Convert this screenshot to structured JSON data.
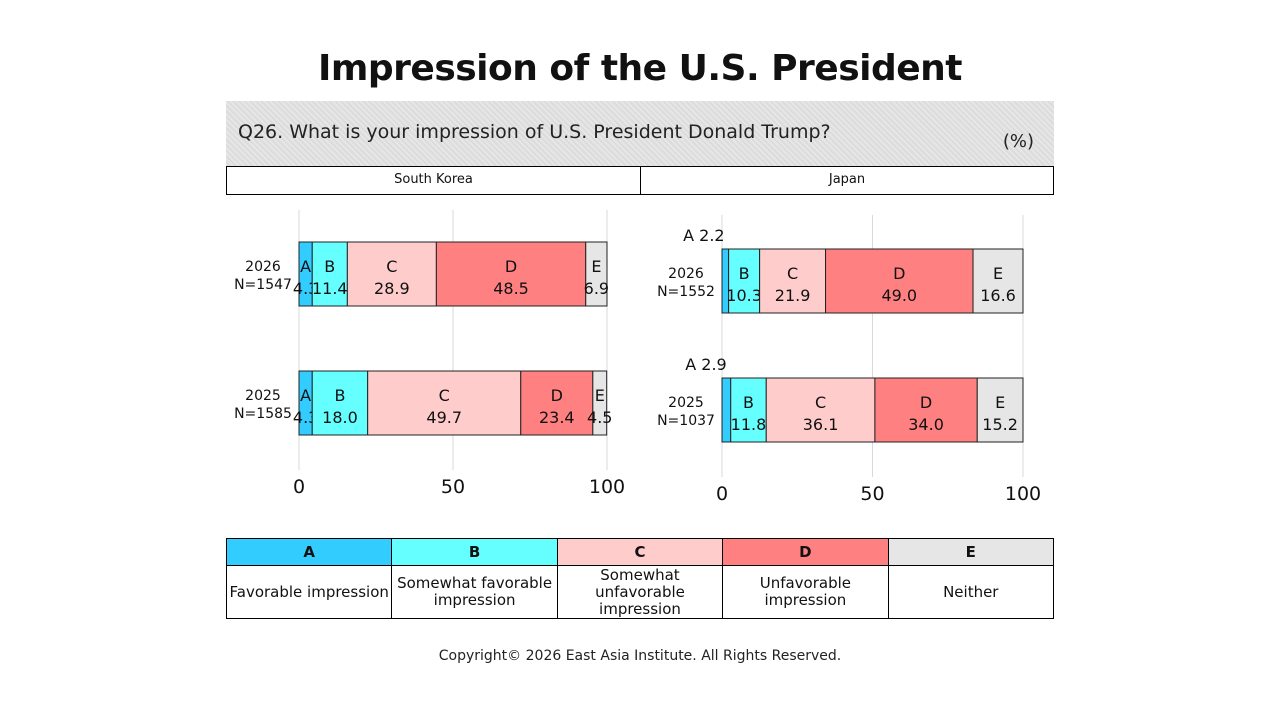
{
  "title": "Impression of the U.S. President",
  "question": "Q26. What is your impression of U.S. President Donald Trump?",
  "unit": "(%)",
  "copyright": "Copyright© 2026 East Asia Institute. All Rights Reserved.",
  "colors": {
    "A": "#33ccff",
    "B": "#66ffff",
    "C": "#ffcccc",
    "D": "#ff8080",
    "E": "#e6e6e6"
  },
  "legend": [
    {
      "key": "A",
      "text": "Favorable impression"
    },
    {
      "key": "B",
      "text": "Somewhat favorable impression"
    },
    {
      "key": "C",
      "text": "Somewhat unfavorable impression"
    },
    {
      "key": "D",
      "text": "Unfavorable impression"
    },
    {
      "key": "E",
      "text": "Neither"
    }
  ],
  "chart_data": [
    {
      "type": "bar",
      "stacked": true,
      "orientation": "horizontal",
      "panel": "South Korea",
      "categories": [
        "2026\nN=1547",
        "2025\nN=1585"
      ],
      "segment_keys": [
        "A",
        "B",
        "C",
        "D",
        "E"
      ],
      "series": [
        {
          "name": "A",
          "values": [
            4.3,
            4.3
          ]
        },
        {
          "name": "B",
          "values": [
            11.4,
            18.0
          ]
        },
        {
          "name": "C",
          "values": [
            28.9,
            49.7
          ]
        },
        {
          "name": "D",
          "values": [
            48.5,
            23.4
          ]
        },
        {
          "name": "E",
          "values": [
            6.9,
            4.5
          ]
        }
      ],
      "xlim": [
        0,
        100
      ],
      "xticks": [
        "0",
        "50",
        "100"
      ],
      "grid": true
    },
    {
      "type": "bar",
      "stacked": true,
      "orientation": "horizontal",
      "panel": "Japan",
      "categories": [
        "2026\nN=1552",
        "2025\nN=1037"
      ],
      "segment_keys": [
        "A",
        "B",
        "C",
        "D",
        "E"
      ],
      "series": [
        {
          "name": "A",
          "values": [
            2.2,
            2.9
          ]
        },
        {
          "name": "B",
          "values": [
            10.3,
            11.8
          ]
        },
        {
          "name": "C",
          "values": [
            21.9,
            36.1
          ]
        },
        {
          "name": "D",
          "values": [
            49.0,
            34.0
          ]
        },
        {
          "name": "E",
          "values": [
            16.6,
            15.2
          ]
        }
      ],
      "xlim": [
        0,
        100
      ],
      "xticks": [
        "0",
        "50",
        "100"
      ],
      "grid": true
    }
  ]
}
